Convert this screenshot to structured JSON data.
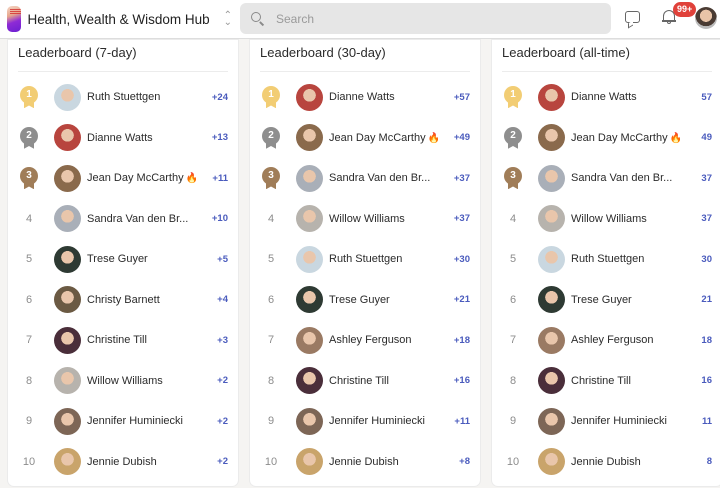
{
  "header": {
    "app_title": "Health, Wealth & Wisdom Hub",
    "search_placeholder": "Search",
    "notification_count": "99+",
    "icons": [
      "logo",
      "switcher-chevrons-icon",
      "search-icon",
      "chat-icon",
      "bell-icon",
      "user-avatar"
    ]
  },
  "colors": {
    "gold": "#f2cd74",
    "silver": "#8e8e8e",
    "bronze": "#a07d58",
    "points": "#4a5bbd",
    "badge": "#e0413a",
    "fire": "#f0772a"
  },
  "boards": [
    {
      "title": "Leaderboard (7-day)",
      "rows": [
        {
          "rank": "1",
          "name": "Ruth Stuettgen",
          "fire": false,
          "points": "+24",
          "avatar": "#c9d7e0"
        },
        {
          "rank": "2",
          "name": "Dianne Watts",
          "fire": false,
          "points": "+13",
          "avatar": "#b8453e"
        },
        {
          "rank": "3",
          "name": "Jean Day McCarthy",
          "fire": true,
          "points": "+11",
          "avatar": "#8a6a4c"
        },
        {
          "rank": "4",
          "name": "Sandra Van den Br...",
          "fire": false,
          "points": "+10",
          "avatar": "#a9afb8"
        },
        {
          "rank": "5",
          "name": "Trese Guyer",
          "fire": false,
          "points": "+5",
          "avatar": "#2e3a33"
        },
        {
          "rank": "6",
          "name": "Christy Barnett",
          "fire": false,
          "points": "+4",
          "avatar": "#6b5a43"
        },
        {
          "rank": "7",
          "name": "Christine Till",
          "fire": false,
          "points": "+3",
          "avatar": "#4a2e3a"
        },
        {
          "rank": "8",
          "name": "Willow Williams",
          "fire": false,
          "points": "+2",
          "avatar": "#b7b3ad"
        },
        {
          "rank": "9",
          "name": "Jennifer Huminiecki",
          "fire": false,
          "points": "+2",
          "avatar": "#7d6656"
        },
        {
          "rank": "10",
          "name": "Jennie Dubish",
          "fire": false,
          "points": "+2",
          "avatar": "#c9a46b"
        }
      ]
    },
    {
      "title": "Leaderboard (30-day)",
      "rows": [
        {
          "rank": "1",
          "name": "Dianne Watts",
          "fire": false,
          "points": "+57",
          "avatar": "#b8453e"
        },
        {
          "rank": "2",
          "name": "Jean Day McCarthy",
          "fire": true,
          "points": "+49",
          "avatar": "#8a6a4c"
        },
        {
          "rank": "3",
          "name": "Sandra Van den Br...",
          "fire": false,
          "points": "+37",
          "avatar": "#a9afb8"
        },
        {
          "rank": "4",
          "name": "Willow Williams",
          "fire": false,
          "points": "+37",
          "avatar": "#b7b3ad"
        },
        {
          "rank": "5",
          "name": "Ruth Stuettgen",
          "fire": false,
          "points": "+30",
          "avatar": "#c9d7e0"
        },
        {
          "rank": "6",
          "name": "Trese Guyer",
          "fire": false,
          "points": "+21",
          "avatar": "#2e3a33"
        },
        {
          "rank": "7",
          "name": "Ashley Ferguson",
          "fire": false,
          "points": "+18",
          "avatar": "#9a7a63"
        },
        {
          "rank": "8",
          "name": "Christine Till",
          "fire": false,
          "points": "+16",
          "avatar": "#4a2e3a"
        },
        {
          "rank": "9",
          "name": "Jennifer Huminiecki",
          "fire": false,
          "points": "+11",
          "avatar": "#7d6656"
        },
        {
          "rank": "10",
          "name": "Jennie Dubish",
          "fire": false,
          "points": "+8",
          "avatar": "#c9a46b"
        }
      ]
    },
    {
      "title": "Leaderboard (all-time)",
      "rows": [
        {
          "rank": "1",
          "name": "Dianne Watts",
          "fire": false,
          "points": "57",
          "avatar": "#b8453e"
        },
        {
          "rank": "2",
          "name": "Jean Day McCarthy",
          "fire": true,
          "points": "49",
          "avatar": "#8a6a4c"
        },
        {
          "rank": "3",
          "name": "Sandra Van den Br...",
          "fire": false,
          "points": "37",
          "avatar": "#a9afb8"
        },
        {
          "rank": "4",
          "name": "Willow Williams",
          "fire": false,
          "points": "37",
          "avatar": "#b7b3ad"
        },
        {
          "rank": "5",
          "name": "Ruth Stuettgen",
          "fire": false,
          "points": "30",
          "avatar": "#c9d7e0"
        },
        {
          "rank": "6",
          "name": "Trese Guyer",
          "fire": false,
          "points": "21",
          "avatar": "#2e3a33"
        },
        {
          "rank": "7",
          "name": "Ashley Ferguson",
          "fire": false,
          "points": "18",
          "avatar": "#9a7a63"
        },
        {
          "rank": "8",
          "name": "Christine Till",
          "fire": false,
          "points": "16",
          "avatar": "#4a2e3a"
        },
        {
          "rank": "9",
          "name": "Jennifer Huminiecki",
          "fire": false,
          "points": "11",
          "avatar": "#7d6656"
        },
        {
          "rank": "10",
          "name": "Jennie Dubish",
          "fire": false,
          "points": "8",
          "avatar": "#c9a46b"
        }
      ]
    }
  ]
}
